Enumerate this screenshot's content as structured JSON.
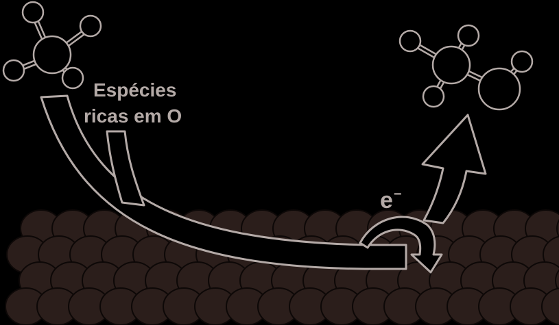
{
  "labels": {
    "species_line1": "Espécies",
    "species_line2": "ricas em O",
    "electron": "e",
    "electron_charge": "−"
  },
  "colors": {
    "background": "#000000",
    "outline": "#b4aaa7",
    "atom_fill": "#2b1e1b",
    "atom_stroke": "#0d0807",
    "text": "#b4aaa7"
  }
}
